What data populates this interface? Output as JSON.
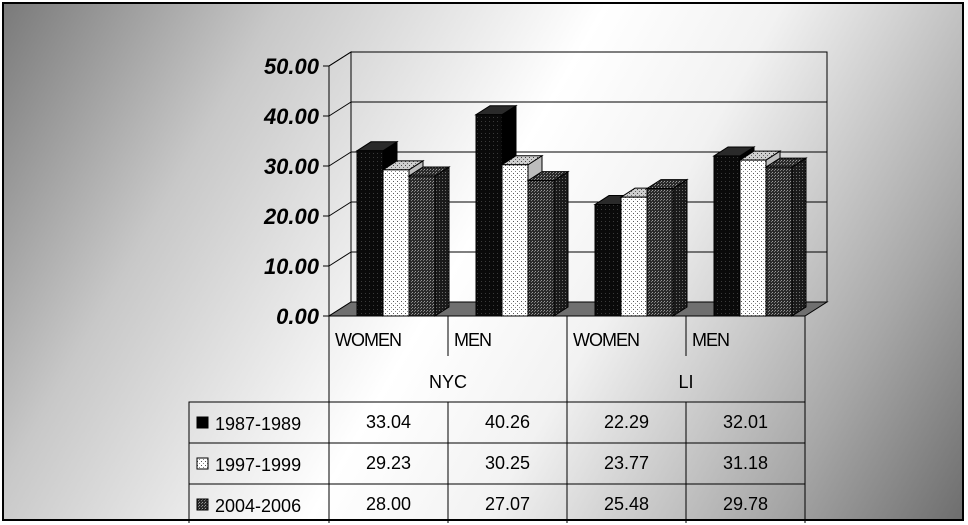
{
  "chart_data": {
    "type": "bar",
    "groups": [
      "NYC",
      "LI"
    ],
    "categories": [
      "WOMEN",
      "MEN",
      "WOMEN",
      "MEN"
    ],
    "category_groups": [
      0,
      0,
      1,
      1
    ],
    "series": [
      {
        "name": "1987-1989",
        "values": [
          33.04,
          40.26,
          22.29,
          32.01
        ],
        "display": [
          "33.04",
          "40.26",
          "22.29",
          "32.01"
        ],
        "pattern": "solid-black"
      },
      {
        "name": "1997-1999",
        "values": [
          29.23,
          30.25,
          23.77,
          31.18
        ],
        "display": [
          "29.23",
          "30.25",
          "23.77",
          "31.18"
        ],
        "pattern": "dotted-white"
      },
      {
        "name": "2004-2006",
        "values": [
          28.0,
          27.07,
          25.48,
          29.78
        ],
        "display": [
          "28.00",
          "27.07",
          "25.48",
          "29.78"
        ],
        "pattern": "dense-dark"
      }
    ],
    "yticks": [
      "0.00",
      "10.00",
      "20.00",
      "30.00",
      "40.00",
      "50.00"
    ],
    "ylim": [
      0,
      50
    ],
    "grid": true,
    "three_d": true,
    "legend": "data-table"
  }
}
